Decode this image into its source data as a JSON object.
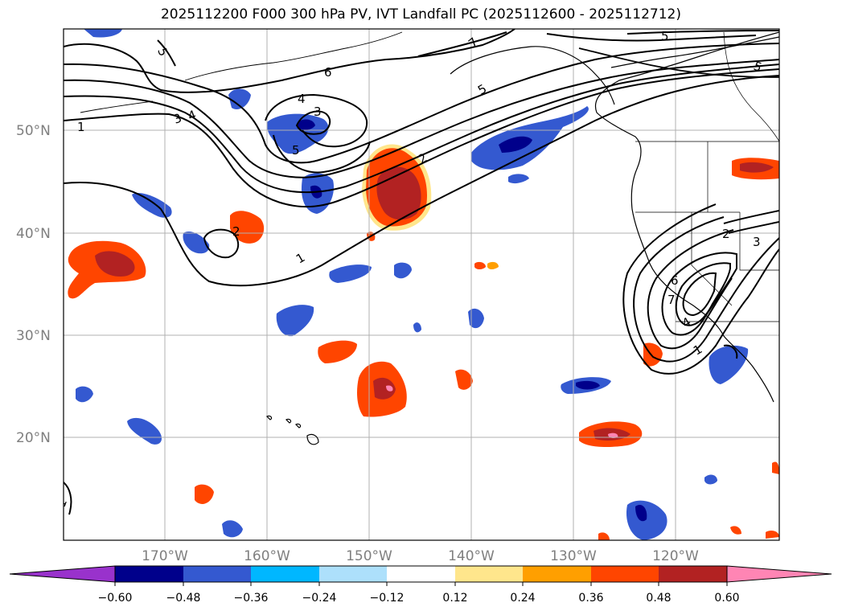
{
  "title": "2025112200 F000 300 hPa PV, IVT Landfall PC (2025112600 - 2025112712)",
  "map": {
    "lat_labels": [
      "50°N",
      "40°N",
      "30°N",
      "20°N"
    ],
    "lon_labels": [
      "170°W",
      "160°W",
      "150°W",
      "140°W",
      "130°W",
      "120°W"
    ]
  },
  "contour_labels": [
    "1",
    "1",
    "1",
    "1",
    "2",
    "2",
    "2",
    "3",
    "3",
    "3",
    "4",
    "4",
    "4",
    "5",
    "5",
    "5",
    "5",
    "5",
    "6",
    "6",
    "7",
    "7"
  ],
  "colorbar": {
    "ticks": [
      "−0.60",
      "−0.48",
      "−0.36",
      "−0.24",
      "−0.12",
      "0.12",
      "0.24",
      "0.36",
      "0.48",
      "0.60"
    ],
    "colors": [
      "#9932cc",
      "#00008b",
      "#3459d0",
      "#00b7ff",
      "#ade0fb",
      "#ffffff",
      "#ffe68c",
      "#ff9f00",
      "#ff4500",
      "#b22222",
      "#ff85b4"
    ]
  }
}
